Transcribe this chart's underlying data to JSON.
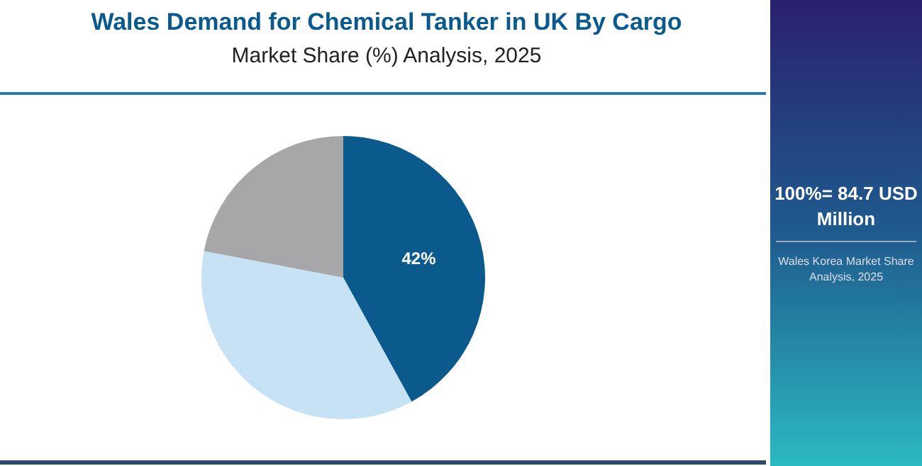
{
  "chart_data": {
    "type": "pie",
    "title": "Wales Demand for Chemical Tanker in UK By Cargo",
    "subtitle": "Market Share (%) Analysis, 2025",
    "categories": [
      null,
      null,
      null
    ],
    "values": [
      42,
      36,
      22
    ],
    "colors": [
      "#0b5a8e",
      "#c6e2f4",
      "#a7a7a9"
    ],
    "value_labels": [
      "42%",
      null,
      null
    ],
    "annotations": [
      "100%= 84.7 USD Million",
      "Wales Korea Market Share Analysis, 2025"
    ]
  }
}
